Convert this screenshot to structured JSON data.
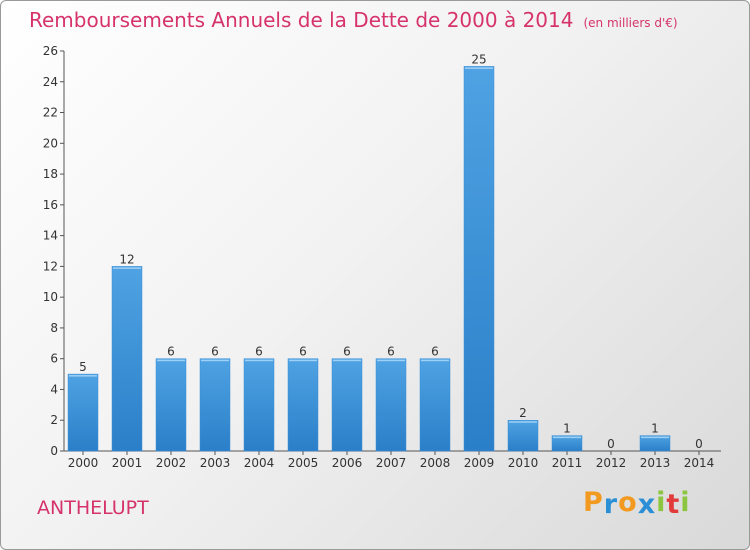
{
  "chart_data": {
    "type": "bar",
    "title": "Remboursements Annuels de la Dette de 2000 à 2014",
    "unit_note": "(en milliers d'€)",
    "categories": [
      "2000",
      "2001",
      "2002",
      "2003",
      "2004",
      "2005",
      "2006",
      "2007",
      "2008",
      "2009",
      "2010",
      "2011",
      "2012",
      "2013",
      "2014"
    ],
    "values": [
      5,
      12,
      6,
      6,
      6,
      6,
      6,
      6,
      6,
      25,
      2,
      1,
      0,
      1,
      0
    ],
    "ylim": [
      0,
      26
    ],
    "yticks": [
      0,
      2,
      4,
      6,
      8,
      10,
      12,
      14,
      16,
      18,
      20,
      22,
      24,
      26
    ],
    "grid": false,
    "bar_color": "#4fa3e3",
    "bar_color_dark": "#2a7fc8"
  },
  "place_name": "ANTHELUPT",
  "logo": {
    "text": "Proxiti",
    "colors": [
      "#f29a1f",
      "#2b8fd6",
      "#f29a1f",
      "#2b8fd6",
      "#8cc63e",
      "#e23b3b",
      "#8cc63e"
    ]
  }
}
